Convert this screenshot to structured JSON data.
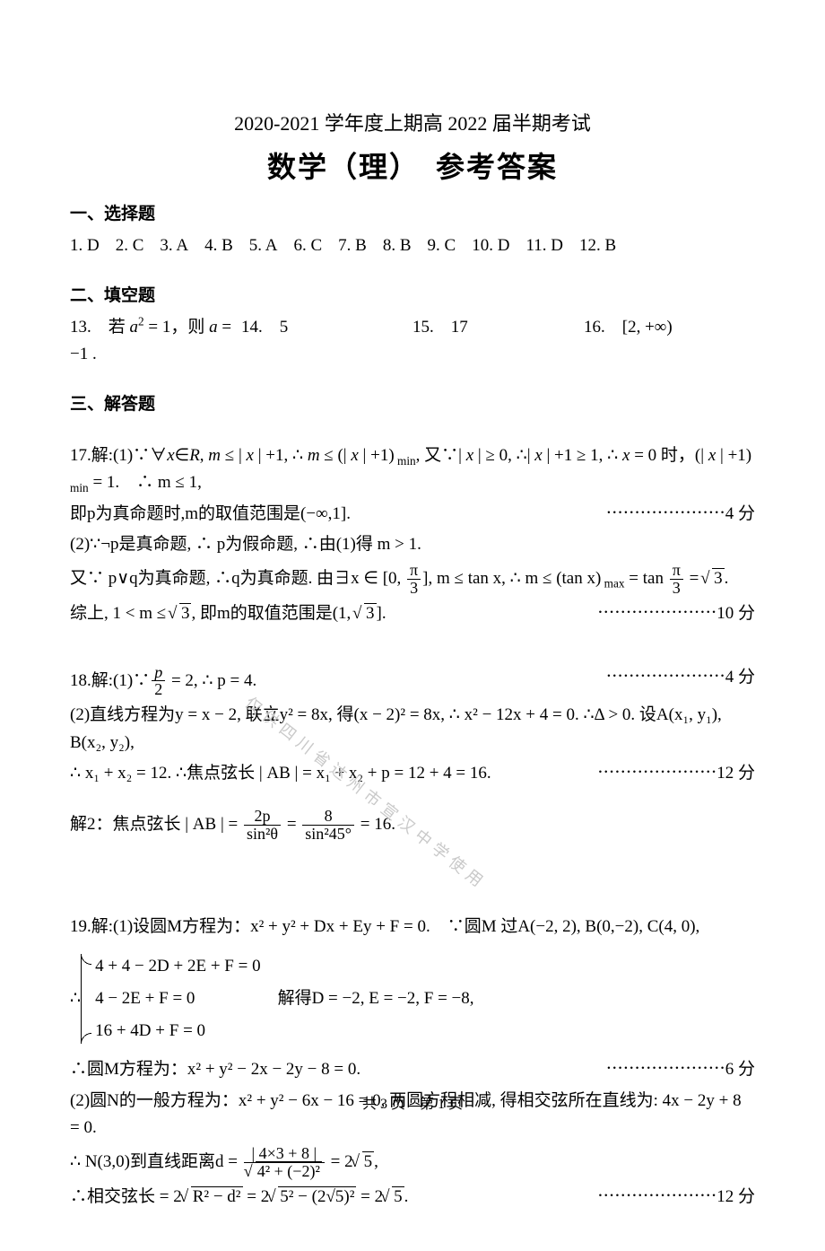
{
  "header": {
    "line1": "2020-2021 学年度上期高 2022 届半期考试",
    "line2": "数学（理）　参考答案"
  },
  "sections": {
    "mc_title": "一、选择题",
    "fill_title": "二、填空题",
    "free_title": "三、解答题"
  },
  "mc": {
    "items": [
      {
        "n": "1.",
        "a": "D"
      },
      {
        "n": "2.",
        "a": "C"
      },
      {
        "n": "3.",
        "a": "A"
      },
      {
        "n": "4.",
        "a": "B"
      },
      {
        "n": "5.",
        "a": "A"
      },
      {
        "n": "6.",
        "a": "C"
      },
      {
        "n": "7.",
        "a": "B"
      },
      {
        "n": "8.",
        "a": "B"
      },
      {
        "n": "9.",
        "a": "C"
      },
      {
        "n": "10.",
        "a": "D"
      },
      {
        "n": "11.",
        "a": "D"
      },
      {
        "n": "12.",
        "a": "B"
      }
    ]
  },
  "fill": {
    "q13_label": "13.　若 ",
    "q13_math": "a² = 1，则 a = −1 .",
    "q14_label": "14.　",
    "q14_ans": "5",
    "q15_label": "15.　",
    "q15_ans": "17",
    "q16_label": "16.　",
    "q16_ans": "[2, +∞)"
  },
  "q17": {
    "l1a": "17.解:(1)∵∀",
    "l1b": "x∈R, m ≤ | x | +1, ∴ m ≤ (| x | +1)",
    "l1min": " min",
    "l1c": ", 又∵| x | ≥ 0, ∴| x | +1 ≥ 1, ∴ x = 0 时，(| x | +1)",
    "l1d": " = 1.　∴ m ≤ 1,",
    "l2": "即p为真命题时,m的取值范围是(−∞,1].",
    "score1": "4 分",
    "l3": "(2)∵¬p是真命题, ∴ p为假命题, ∴由(1)得 m > 1.",
    "l4a": "又∵ p∨q为真命题, ∴q为真命题. 由∃x ∈ [0, ",
    "l4frac_n": "π",
    "l4frac_d": "3",
    "l4b": "], m ≤ tan x, ∴ m ≤ (tan x)",
    "l4max": " max",
    "l4c": " = tan ",
    "l4frac2_n": "π",
    "l4frac2_d": "3",
    "l4d": " = ",
    "l4rad": "3",
    "l4e": ".",
    "l5a": "综上, 1 < m ≤ ",
    "l5rad": "3",
    "l5b": ", 即m的取值范围是(1, ",
    "l5rad2": "3",
    "l5c": "].",
    "score2": "10 分"
  },
  "q18": {
    "l1a": "18.解:(1)∵",
    "l1frac_n": "p",
    "l1frac_d": "2",
    "l1b": " = 2, ∴ p = 4.",
    "score1": "4 分",
    "l2": "(2)直线方程为y = x − 2, 联立y² = 8x, 得(x − 2)² = 8x, ∴ x² − 12x + 4 = 0. ∴Δ > 0. 设A(x₁, y₁), B(x₂, y₂),",
    "l3": "∴ x₁ + x₂ = 12. ∴焦点弦长 | AB | = x₁ + x₂ + p = 12 + 4 = 16.",
    "score2": "12 分",
    "l4a": "解2：焦点弦长 | AB | = ",
    "l4f1n": "2p",
    "l4f1d": "sin²θ",
    "l4b": " = ",
    "l4f2n": "8",
    "l4f2d": "sin²45°",
    "l4c": " = 16."
  },
  "q19": {
    "l1": "19.解:(1)设圆M方程为：x² + y² + Dx + Ey + F = 0.　∵圆M 过A(−2, 2), B(0,−2), C(4, 0),",
    "l2a": "∴",
    "sys1": "4 + 4 − 2D + 2E + F = 0",
    "sys2": "4 − 2E + F = 0",
    "sys3": "16 + 4D + F = 0",
    "l2b": "　解得D = −2, E = −2, F = −8,",
    "l3": "∴圆M方程为：x² + y² − 2x − 2y − 8 = 0.",
    "score1": "6 分",
    "l4": "(2)圆N的一般方程为：x² + y² − 6x − 16 = 0, 两圆方程相减, 得相交弦所在直线为: 4x − 2y + 8 = 0.",
    "l5a": "∴ N(3,0)到直线距离d = ",
    "l5f1n": "| 4×3 + 8 |",
    "l5f1d_rad": "4² + (−2)²",
    "l5b": " = 2",
    "l5rad": "5",
    "l5c": ",",
    "l6a": "∴相交弦长 = 2",
    "l6rad1": "R² − d²",
    "l6b": " = 2",
    "l6rad2": "5² − (2√5)²",
    "l6c": " = 2",
    "l6rad3": "5",
    "l6d": ".",
    "score2": "12 分"
  },
  "watermark": "仅供四川省达州市宣汉中学使用",
  "footer": "共 3 页　第 1 页"
}
